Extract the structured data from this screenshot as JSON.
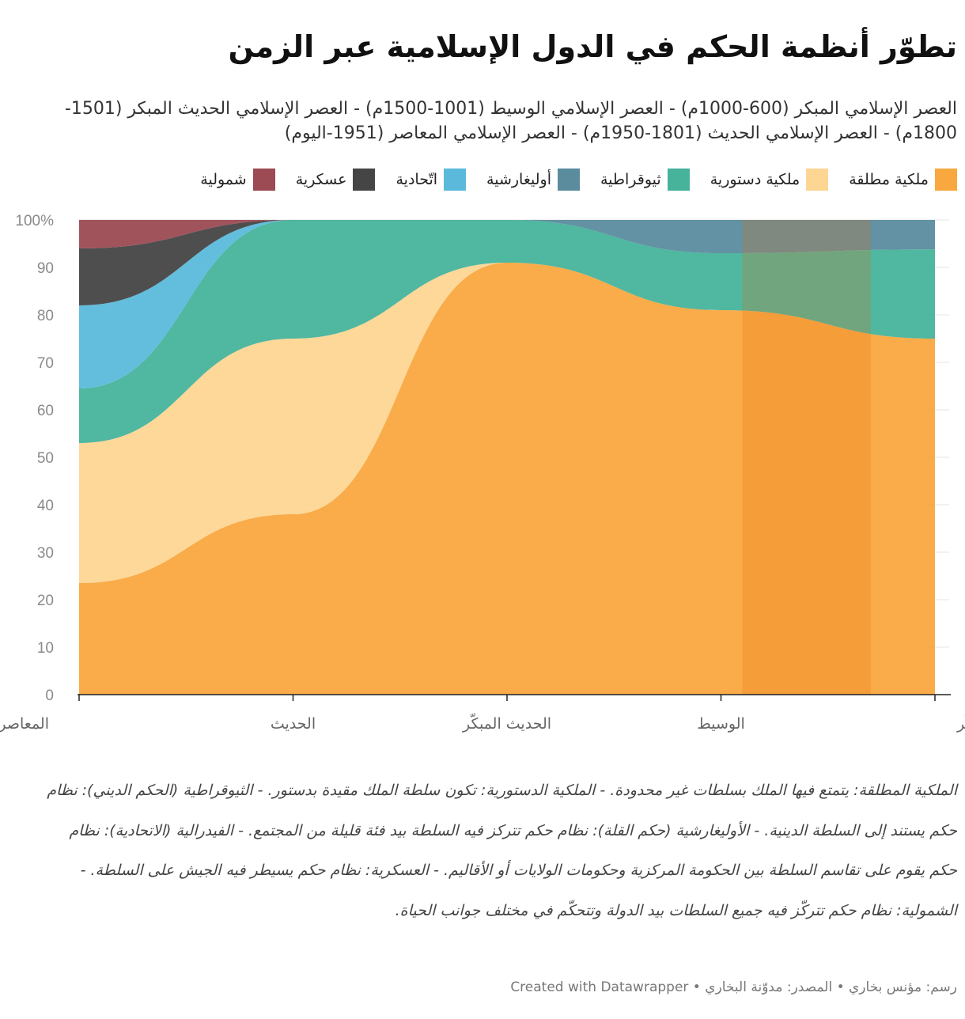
{
  "title": "تطوّر أنظمة الحكم في الدول الإسلامية عبر الزمن",
  "subtitle": "العصر الإسلامي المبكر (600-1000م) - العصر الإسلامي الوسيط (1001-1500م) - العصر الإسلامي الحديث المبكر (1501-1800م) - العصر الإسلامي الحديث (1801-1950م) - العصر الإسلامي المعاصر (1951-اليوم)",
  "notes": "الملكية المطلقة: يتمتع فيها الملك بسلطات غير محدودة. - الملكية الدستورية: تكون سلطة الملك مقيدة بدستور. - الثيوقراطية (الحكم الديني): نظام حكم يستند إلى السلطة الدينية. - الأوليغارشية (حكم القلة): نظام حكم تتركز فيه السلطة بيد فئة قليلة من المجتمع. - الفيدرالية (الاتحادية): نظام حكم يقوم على تقاسم السلطة بين الحكومة المركزية وحكومات الولايات أو الأقاليم. - العسكرية: نظام حكم يسيطر فيه الجيش على السلطة. - الشمولية: نظام حكم تتركّز فيه جميع السلطات بيد الدولة وتتحكّم في مختلف جوانب الحياة.",
  "byline": "رسم: مؤنس بخاري • المصدر: مدوّنة البخاري • Created with Datawrapper",
  "chart_data": {
    "type": "area",
    "stacked": true,
    "x_direction": "right-to-left",
    "categories": [
      "المبكّر",
      "الوسيط",
      "الحديث المبكّر",
      "الحديث",
      "المعاصر"
    ],
    "y_ticks": [
      "100%",
      "90",
      "80",
      "70",
      "60",
      "50",
      "40",
      "30",
      "20",
      "10",
      "0"
    ],
    "ylim": [
      0,
      100
    ],
    "highlight": {
      "from_category": 0,
      "to_category": 1,
      "from_fraction": 0.3,
      "to_fraction": 0.9
    },
    "series": [
      {
        "name": "ملكية مطلقة",
        "color": "#f9a83f",
        "values": [
          75,
          81,
          91,
          38,
          23.5
        ]
      },
      {
        "name": "ملكية دستورية",
        "color": "#fdd694",
        "values": [
          0,
          0,
          0,
          37,
          29.5
        ]
      },
      {
        "name": "ثيوقراطية",
        "color": "#47b39b",
        "values": [
          18.8,
          12,
          9,
          25,
          11.5
        ]
      },
      {
        "name": "أوليغارشية",
        "color": "#5a8c9e",
        "values": [
          6.2,
          7,
          0,
          0,
          0
        ]
      },
      {
        "name": "اتّحادية",
        "color": "#5bbadb",
        "values": [
          0,
          0,
          0,
          0,
          17.5
        ]
      },
      {
        "name": "عسكرية",
        "color": "#454545",
        "values": [
          0,
          0,
          0,
          0,
          12
        ]
      },
      {
        "name": "شمولية",
        "color": "#9c4a53",
        "values": [
          0,
          0,
          0,
          0,
          6
        ]
      }
    ]
  }
}
